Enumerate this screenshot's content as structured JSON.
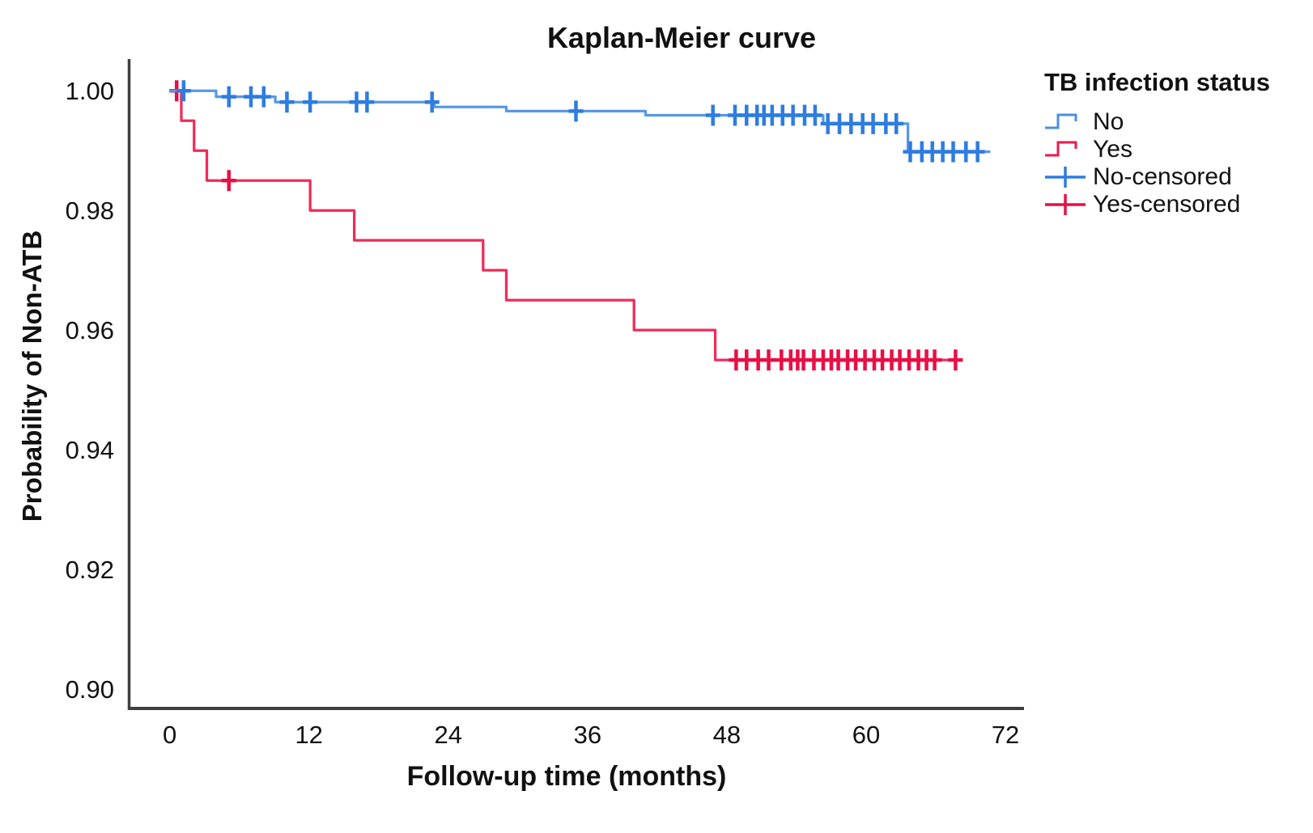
{
  "figure": {
    "title": "Kaplan-Meier curve",
    "xlabel": "Follow-up time (months)",
    "ylabel": "Probability of Non-ATB"
  },
  "legend": {
    "title": "TB infection status",
    "entries": [
      {
        "label": "No",
        "marker": "step",
        "color": "#4a8ee0"
      },
      {
        "label": "Yes",
        "marker": "step",
        "color": "#ee1a4d"
      },
      {
        "label": "No-censored",
        "marker": "censor",
        "color": "#2e7cdf"
      },
      {
        "label": "Yes-censored",
        "marker": "censor",
        "color": "#e80f45"
      }
    ]
  },
  "chart_data": {
    "type": "line",
    "subtype": "kaplan-meier-step",
    "title": "Kaplan-Meier curve",
    "xlabel": "Follow-up time (months)",
    "ylabel": "Probability of Non-ATB",
    "xlim": [
      -3.6,
      73.6
    ],
    "ylim": [
      0.8965,
      1.0053
    ],
    "xticks": [
      0,
      12,
      24,
      36,
      48,
      60,
      72
    ],
    "yticks": [
      1.0,
      0.98,
      0.96,
      0.94,
      0.92,
      0.9
    ],
    "xtick_labels": [
      "0",
      "12",
      "24",
      "36",
      "48",
      "60",
      "72"
    ],
    "ytick_labels": [
      "1.00",
      "0.98",
      "0.96",
      "0.94",
      "0.92",
      "0.90"
    ],
    "grid": false,
    "legend_position": "right",
    "axis_color": "#3f3f3f",
    "series": [
      {
        "name": "No",
        "line_color": "#5798e5",
        "censor_color": "#2e7cdf",
        "steps": [
          [
            0,
            1.0
          ],
          [
            4.0,
            0.999
          ],
          [
            9.1,
            0.9981
          ],
          [
            22.8,
            0.9973
          ],
          [
            29.0,
            0.9966
          ],
          [
            41.0,
            0.9959
          ],
          [
            56.3,
            0.9945
          ],
          [
            63.6,
            0.9898
          ]
        ],
        "end_time": 70.7,
        "censor_times": [
          1.2,
          5.1,
          7.0,
          8.1,
          10.1,
          12.1,
          16.1,
          17.0,
          22.6,
          35.0,
          46.8,
          48.7,
          49.7,
          50.6,
          51.2,
          51.9,
          52.8,
          53.7,
          54.7,
          55.6,
          56.7,
          57.7,
          58.7,
          59.7,
          60.6,
          61.7,
          62.6,
          63.8,
          64.8,
          65.7,
          66.6,
          67.5,
          68.6,
          69.6
        ]
      },
      {
        "name": "Yes",
        "line_color": "#f02b59",
        "censor_color": "#e80f45",
        "steps": [
          [
            0,
            1.0
          ],
          [
            1.0,
            0.995
          ],
          [
            2.1,
            0.99
          ],
          [
            3.2,
            0.985
          ],
          [
            12.1,
            0.98
          ],
          [
            15.9,
            0.975
          ],
          [
            27.0,
            0.97
          ],
          [
            29.0,
            0.965
          ],
          [
            40.0,
            0.96
          ],
          [
            47.0,
            0.955
          ]
        ],
        "end_time": 68.2,
        "censor_times": [
          0.6,
          5.1,
          48.8,
          49.7,
          50.7,
          51.6,
          52.7,
          53.5,
          54.1,
          54.6,
          55.5,
          56.3,
          57.0,
          57.6,
          58.4,
          59.1,
          59.9,
          60.7,
          61.4,
          62.2,
          62.9,
          63.7,
          64.5,
          65.2,
          65.9,
          67.7
        ]
      }
    ]
  }
}
